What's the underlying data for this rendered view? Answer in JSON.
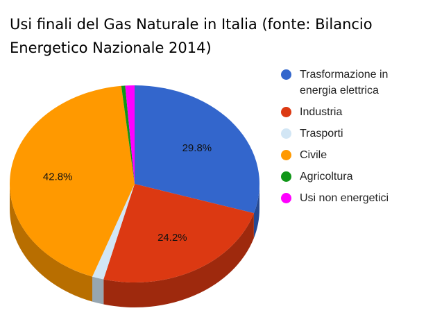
{
  "chart_data": {
    "type": "pie",
    "title": "Usi finali del Gas Naturale in Italia (fonte: Bilancio Energetico Nazionale 2014)",
    "labels": [
      "Trasformazione in energia elettrica",
      "Industria",
      "Trasporti",
      "Civile",
      "Agricoltura",
      "Usi non energetici"
    ],
    "values": [
      29.8,
      24.2,
      1.5,
      42.8,
      0.5,
      1.2
    ],
    "value_labels": [
      "29.8%",
      "24.2%",
      "",
      "42.8%",
      "",
      ""
    ],
    "colors": [
      "#3366cc",
      "#dc3912",
      "#d2e6f5",
      "#ff9900",
      "#109618",
      "#ff00ff"
    ],
    "legend_position": "right",
    "style": "3d"
  }
}
